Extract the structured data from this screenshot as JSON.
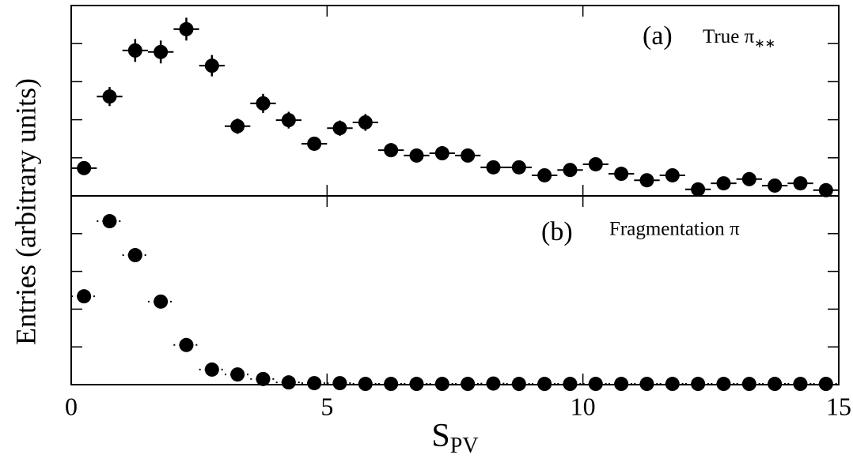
{
  "chart_data": [
    {
      "type": "scatter",
      "label": "(a)",
      "annotation": "True π",
      "annotation_sub": "∗∗",
      "ylabel": "Entries (arbitrary units)",
      "x": [
        0.25,
        0.75,
        1.25,
        1.75,
        2.25,
        2.75,
        3.25,
        3.75,
        4.25,
        4.75,
        5.25,
        5.75,
        6.25,
        6.75,
        7.25,
        7.75,
        8.25,
        8.75,
        9.25,
        9.75,
        10.25,
        10.75,
        11.25,
        11.75,
        12.25,
        12.75,
        13.25,
        13.75,
        14.25,
        14.75
      ],
      "values": [
        0.73,
        2.61,
        3.82,
        3.78,
        4.38,
        3.42,
        1.83,
        2.43,
        1.99,
        1.37,
        1.78,
        1.93,
        1.2,
        1.06,
        1.12,
        1.06,
        0.75,
        0.75,
        0.54,
        0.68,
        0.83,
        0.58,
        0.41,
        0.54,
        0.17,
        0.33,
        0.44,
        0.27,
        0.33,
        0.15
      ],
      "errors": [
        0.12,
        0.25,
        0.3,
        0.3,
        0.3,
        0.28,
        0.2,
        0.25,
        0.22,
        0.18,
        0.2,
        0.22,
        0.15,
        0.15,
        0.15,
        0.15,
        0.12,
        0.12,
        0.1,
        0.12,
        0.12,
        0.1,
        0.1,
        0.1,
        0.08,
        0.1,
        0.1,
        0.08,
        0.08,
        0.08
      ],
      "ylim": [
        0,
        5
      ],
      "yticks": [
        1,
        2,
        3,
        4
      ],
      "color": "#000000",
      "dotted": false
    },
    {
      "type": "scatter",
      "label": "(b)",
      "annotation": "Fragmentation π",
      "xlabel": "S",
      "xlabel_sub": "PV",
      "x": [
        0.25,
        0.75,
        1.25,
        1.75,
        2.25,
        2.75,
        3.25,
        3.75,
        4.25,
        4.75,
        5.25,
        5.75,
        6.25,
        6.75,
        7.25,
        7.75,
        8.25,
        8.75,
        9.25,
        9.75,
        10.25,
        10.75,
        11.25,
        11.75,
        12.25,
        12.75,
        13.25,
        13.75,
        14.25,
        14.75
      ],
      "values": [
        2.34,
        4.33,
        3.43,
        2.2,
        1.05,
        0.4,
        0.27,
        0.15,
        0.06,
        0.04,
        0.04,
        0.02,
        0.02,
        0.02,
        0.02,
        0.02,
        0.03,
        0.02,
        0.02,
        0.02,
        0.02,
        0.02,
        0.02,
        0.02,
        0.02,
        0.02,
        0.02,
        0.02,
        0.02,
        0.02
      ],
      "errors": [
        0.08,
        0.1,
        0.1,
        0.08,
        0.08,
        0.06,
        0.05,
        0.04,
        0.03,
        0.03,
        0.03,
        0.02,
        0.02,
        0.02,
        0.02,
        0.02,
        0.02,
        0.02,
        0.02,
        0.02,
        0.02,
        0.02,
        0.02,
        0.02,
        0.02,
        0.02,
        0.02,
        0.02,
        0.02,
        0.02
      ],
      "ylim": [
        0,
        5
      ],
      "yticks": [
        1,
        2,
        3,
        4
      ],
      "color": "#000000",
      "dotted": true,
      "xlim": [
        0,
        15
      ],
      "xticks": [
        0,
        5,
        10,
        15
      ]
    }
  ]
}
